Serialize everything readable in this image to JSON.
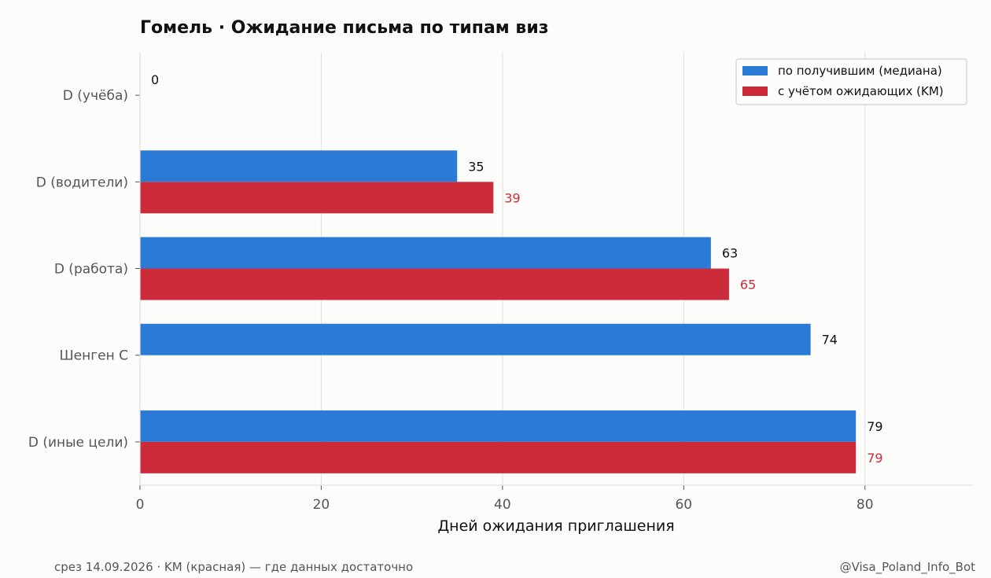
{
  "chart_data": {
    "type": "bar",
    "orientation": "horizontal",
    "title": "Гомель · Ожидание письма по типам виз",
    "xlabel": "Дней ожидания приглашения",
    "ylabel": "",
    "xlim": [
      0,
      92
    ],
    "xticks": [
      0,
      20,
      40,
      60,
      80
    ],
    "grid": "vertical",
    "legend_position": "top-right",
    "categories": [
      "D (учёба)",
      "D (водители)",
      "D (работа)",
      "Шенген C",
      "D (иные цели)"
    ],
    "series": [
      {
        "name": "по получившим (медиана)",
        "color": "#2b7bd6",
        "values": [
          0,
          35,
          63,
          74,
          79
        ]
      },
      {
        "name": "с учётом ожидающих (KM)",
        "color": "#cc2b3a",
        "values": [
          null,
          39,
          65,
          null,
          79
        ]
      }
    ]
  },
  "footer": {
    "left": "срез 14.09.2026 · KM (красная) — где данных достаточно",
    "right": "@Visa_Poland_Info_Bot"
  },
  "colors": {
    "background": "#fcfcfa",
    "grid": "#e3e3e3",
    "value_label_first": "#111111",
    "value_label_second": "#cc2b3a"
  }
}
